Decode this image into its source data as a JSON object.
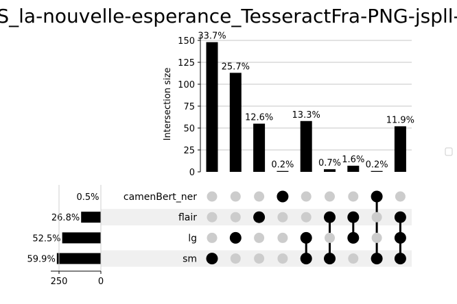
{
  "title": "S_la-nouvelle-esperance_TesseractFra-PNG-jspll-",
  "chart_data": {
    "type": "upset",
    "intersection_axis": {
      "label": "Intersection size",
      "ylim": [
        0,
        155
      ],
      "ticks": [
        0,
        25,
        50,
        75,
        100,
        125,
        150
      ],
      "grid": true
    },
    "set_size_axis": {
      "ticks": [
        250,
        0
      ],
      "xlim_max": 260
    },
    "sets": [
      {
        "name": "camenBert_ner",
        "size": 2,
        "pct": "0.5%"
      },
      {
        "name": "flair",
        "size": 118,
        "pct": "26.8%"
      },
      {
        "name": "lg",
        "size": 231,
        "pct": "52.5%"
      },
      {
        "name": "sm",
        "size": 263,
        "pct": "59.9%"
      }
    ],
    "intersections": [
      {
        "members": [
          "sm"
        ],
        "value": 148,
        "pct": "33.7%"
      },
      {
        "members": [
          "lg"
        ],
        "value": 113,
        "pct": "25.7%"
      },
      {
        "members": [
          "flair"
        ],
        "value": 55,
        "pct": "12.6%"
      },
      {
        "members": [
          "camenBert_ner"
        ],
        "value": 1,
        "pct": "0.2%"
      },
      {
        "members": [
          "lg",
          "sm"
        ],
        "value": 58,
        "pct": "13.3%"
      },
      {
        "members": [
          "flair",
          "sm"
        ],
        "value": 3,
        "pct": "0.7%"
      },
      {
        "members": [
          "flair",
          "lg"
        ],
        "value": 7,
        "pct": "1.6%"
      },
      {
        "members": [
          "camenBert_ner",
          "sm"
        ],
        "value": 1,
        "pct": "0.2%"
      },
      {
        "members": [
          "flair",
          "lg",
          "sm"
        ],
        "value": 52,
        "pct": "11.9%"
      }
    ],
    "colors": {
      "bar": "#000000",
      "dot_active": "#000000",
      "dot_inactive": "#cccccc",
      "stripe": "#f0f0f0",
      "grid": "#b0b0b0"
    }
  }
}
